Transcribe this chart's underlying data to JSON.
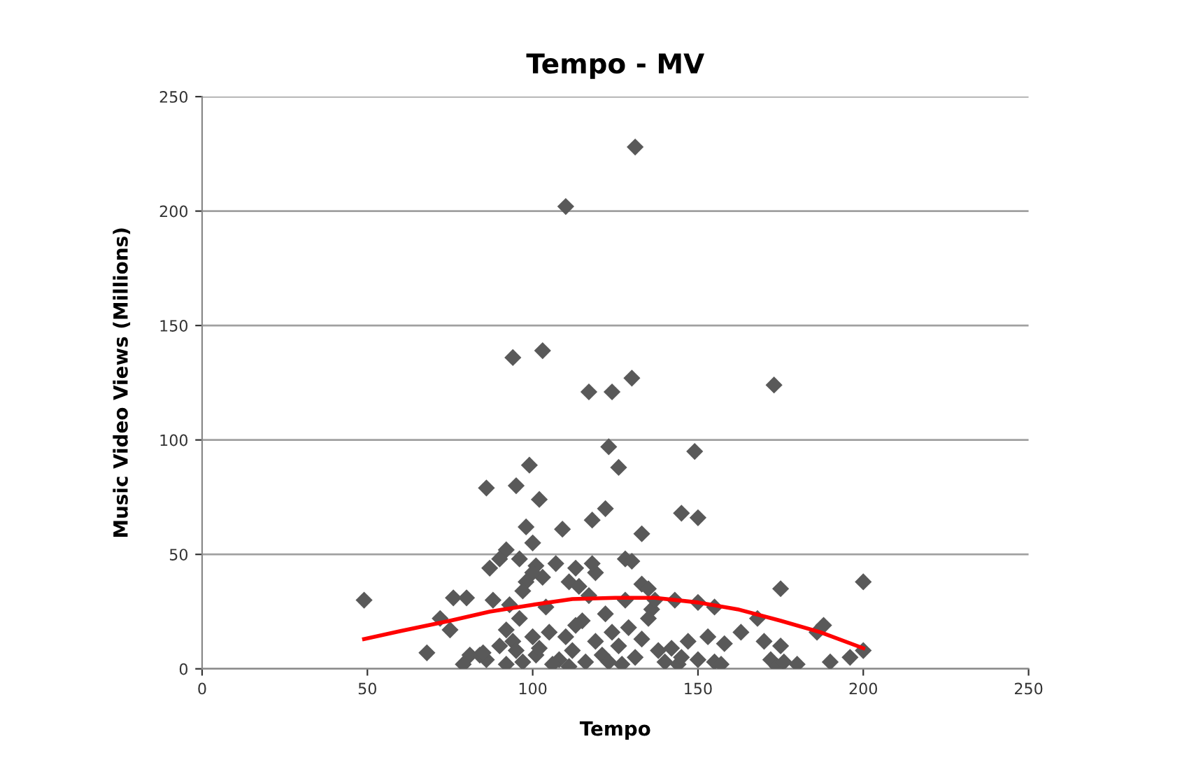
{
  "chart_data": {
    "type": "scatter",
    "title": "Tempo - MV",
    "xlabel": "Tempo",
    "ylabel": "Music Video Views (Millions)",
    "xlim": [
      0,
      250
    ],
    "ylim": [
      0,
      250
    ],
    "xticks": [
      0,
      50,
      100,
      150,
      200,
      250
    ],
    "yticks": [
      0,
      50,
      100,
      150,
      200,
      250
    ],
    "grid": "y",
    "legend": false,
    "marker": "diamond",
    "series": [
      {
        "color": "#595959",
        "x": [
          131,
          110,
          103,
          94,
          173,
          117,
          124,
          130,
          123,
          149,
          99,
          126,
          86,
          95,
          102,
          98,
          109,
          133,
          122,
          145,
          150,
          118,
          92,
          100,
          96,
          107,
          113,
          119,
          118,
          128,
          130,
          87,
          90,
          101,
          103,
          111,
          114,
          133,
          135,
          143,
          150,
          155,
          168,
          175,
          200,
          49,
          76,
          80,
          100,
          98,
          97,
          93,
          88,
          136,
          137,
          72,
          75,
          81,
          79,
          68,
          92,
          94,
          95,
          97,
          100,
          101,
          102,
          108,
          110,
          112,
          115,
          116,
          119,
          121,
          124,
          126,
          127,
          129,
          131,
          133,
          135,
          140,
          142,
          144,
          147,
          150,
          153,
          155,
          157,
          158,
          163,
          170,
          172,
          174,
          175,
          176,
          180,
          186,
          188,
          190,
          196,
          200,
          105,
          106,
          90,
          86,
          84,
          92,
          96,
          104,
          113,
          117,
          122,
          128,
          138,
          145,
          123,
          111,
          85
        ],
        "values": [
          228,
          202,
          139,
          136,
          124,
          121,
          121,
          127,
          97,
          95,
          89,
          88,
          79,
          80,
          74,
          62,
          61,
          59,
          70,
          68,
          66,
          65,
          52,
          55,
          48,
          46,
          44,
          42,
          46,
          48,
          47,
          44,
          48,
          45,
          40,
          38,
          36,
          37,
          35,
          30,
          29,
          27,
          22,
          35,
          38,
          30,
          31,
          31,
          42,
          38,
          34,
          28,
          30,
          26,
          30,
          22,
          17,
          6,
          2,
          7,
          17,
          12,
          8,
          3,
          14,
          6,
          9,
          4,
          14,
          8,
          21,
          3,
          12,
          6,
          16,
          10,
          2,
          18,
          5,
          13,
          22,
          3,
          9,
          2,
          12,
          4,
          14,
          3,
          2,
          11,
          16,
          12,
          4,
          1,
          10,
          3,
          2,
          16,
          19,
          3,
          5,
          8,
          16,
          2,
          10,
          4,
          6,
          2,
          22,
          27,
          19,
          32,
          24,
          30,
          8,
          5,
          3,
          1,
          7
        ]
      },
      {
        "type": "line",
        "color": "#ff0000",
        "marker": "none",
        "x": [
          49,
          60,
          75,
          87,
          100,
          112,
          125,
          137,
          150,
          162,
          175,
          187,
          200
        ],
        "values": [
          13,
          16.5,
          21,
          25,
          28,
          30.5,
          31,
          31,
          29,
          26,
          21,
          16,
          9
        ]
      }
    ]
  }
}
